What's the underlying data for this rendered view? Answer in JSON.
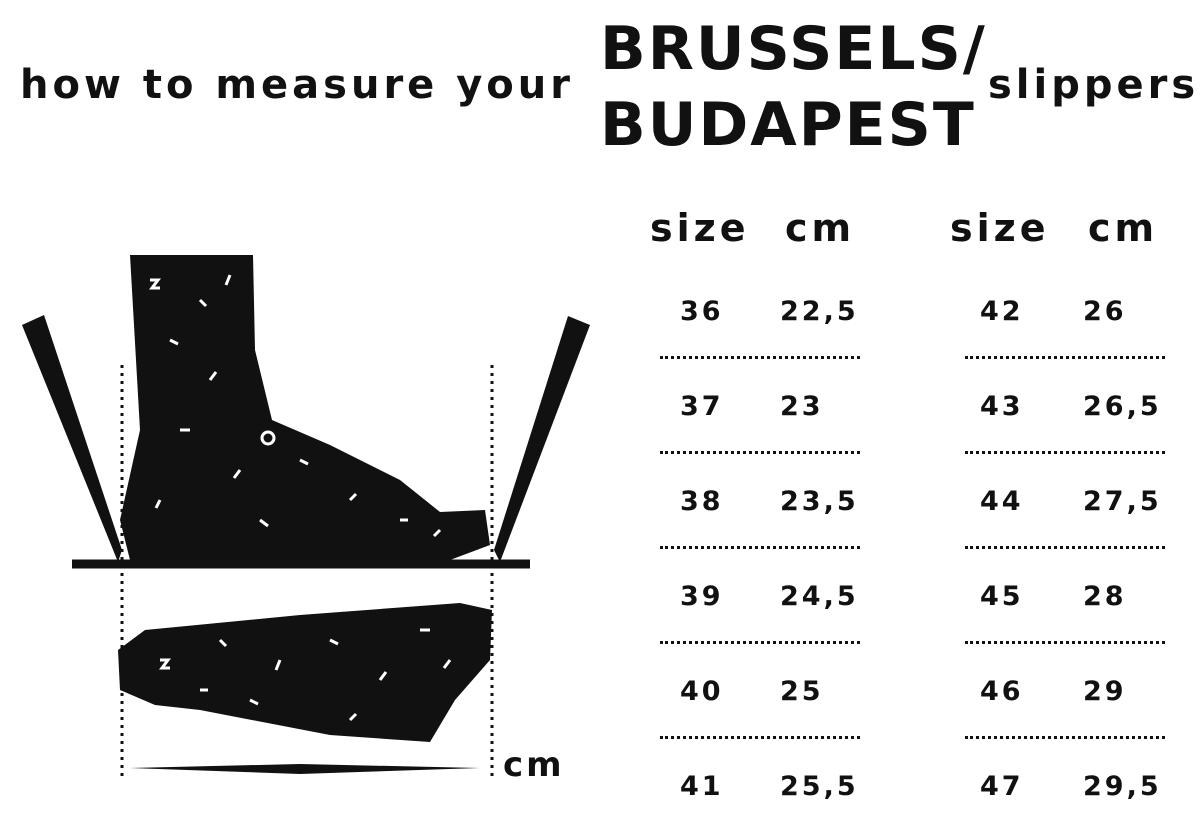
{
  "title": {
    "lead": "how to measure your",
    "model_line1": "BRUSSELS/",
    "model_line2": "BUDAPEST",
    "trail": "slippers"
  },
  "illustration": {
    "unit_label": "cm",
    "icons": [
      "foot-side-icon",
      "foot-top-icon",
      "pencil-icon"
    ]
  },
  "size_table": {
    "headers": [
      "size",
      "cm"
    ],
    "left": [
      [
        "36",
        "22,5"
      ],
      [
        "37",
        "23"
      ],
      [
        "38",
        "23,5"
      ],
      [
        "39",
        "24,5"
      ],
      [
        "40",
        "25"
      ],
      [
        "41",
        "25,5"
      ]
    ],
    "right": [
      [
        "42",
        "26"
      ],
      [
        "43",
        "26,5"
      ],
      [
        "44",
        "27,5"
      ],
      [
        "45",
        "28"
      ],
      [
        "46",
        "29"
      ],
      [
        "47",
        "29,5"
      ]
    ]
  }
}
